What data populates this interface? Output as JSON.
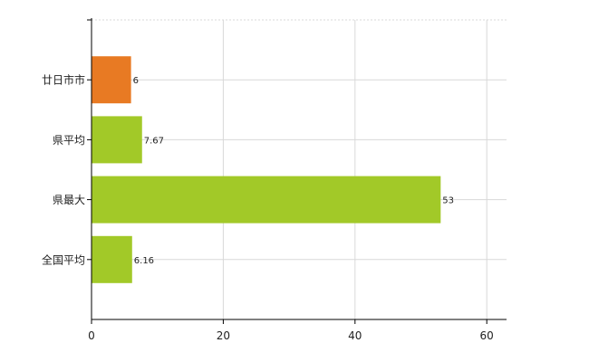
{
  "chart_data": {
    "type": "bar",
    "orientation": "horizontal",
    "categories": [
      "廿日市市",
      "県平均",
      "県最大",
      "全国平均"
    ],
    "values": [
      6,
      7.67,
      53,
      6.16
    ],
    "value_labels": [
      "6",
      "7.67",
      "53",
      "6.16"
    ],
    "x_ticks": [
      "0",
      "20",
      "40",
      "60"
    ],
    "xlim": [
      0,
      63
    ],
    "title": "",
    "xlabel": "",
    "ylabel": "",
    "grid": true,
    "colors": {
      "highlight": "#e87a23",
      "default": "#a2c928",
      "grid": "#d8d8d8",
      "axis": "#000000"
    },
    "highlight_index": 0
  }
}
